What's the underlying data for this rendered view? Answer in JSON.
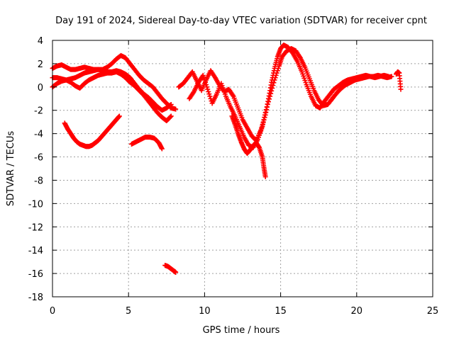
{
  "chart_data": {
    "type": "scatter",
    "title": "Day 191 of 2024, Sidereal Day-to-day VTEC variation (SDTVAR) for receiver cpnt",
    "xlabel": "GPS time / hours",
    "ylabel": "SDTVAR / TECUs",
    "xlim": [
      0,
      25
    ],
    "ylim": [
      -18,
      4
    ],
    "xticks": [
      0,
      5,
      10,
      15,
      20,
      25
    ],
    "yticks": [
      4,
      2,
      0,
      -2,
      -4,
      -6,
      -8,
      -10,
      -12,
      -14,
      -16,
      -18
    ],
    "grid": true,
    "marker": "plus",
    "color": "#ff0000",
    "series": [
      {
        "name": "arc-a",
        "x": [
          0.0,
          0.3,
          0.6,
          0.9,
          1.2,
          1.5,
          1.8,
          2.1,
          2.4,
          2.7,
          3.0,
          3.3,
          3.6,
          3.9,
          4.2,
          4.5,
          4.8,
          5.1,
          5.4,
          5.7,
          6.0,
          6.3,
          6.6,
          6.9,
          7.2,
          7.5,
          7.8
        ],
        "y": [
          1.6,
          1.8,
          1.9,
          1.7,
          1.5,
          1.5,
          1.6,
          1.7,
          1.6,
          1.5,
          1.5,
          1.4,
          1.3,
          1.3,
          1.4,
          1.3,
          1.1,
          0.8,
          0.3,
          -0.2,
          -0.6,
          -0.9,
          -1.3,
          -1.7,
          -2.0,
          -1.8,
          -1.5
        ]
      },
      {
        "name": "arc-b",
        "x": [
          0.0,
          0.3,
          0.6,
          0.9,
          1.2,
          1.5,
          1.8,
          2.1,
          2.4,
          2.7,
          3.0,
          3.3,
          3.6,
          3.9,
          4.2,
          4.5,
          4.8,
          5.1,
          5.4,
          5.7,
          6.0,
          6.3,
          6.6,
          6.9,
          7.2,
          7.5,
          7.8,
          8.1
        ],
        "y": [
          0.8,
          0.8,
          0.7,
          0.6,
          0.7,
          0.8,
          1.0,
          1.2,
          1.3,
          1.4,
          1.5,
          1.5,
          1.7,
          2.0,
          2.4,
          2.7,
          2.5,
          2.0,
          1.5,
          1.0,
          0.6,
          0.3,
          0.0,
          -0.5,
          -1.0,
          -1.4,
          -1.8,
          -1.9
        ]
      },
      {
        "name": "arc-c",
        "x": [
          0.0,
          0.3,
          0.6,
          0.9,
          1.2,
          1.5,
          1.8,
          2.1,
          2.4,
          2.7,
          3.0,
          3.3,
          3.6,
          3.9,
          4.2,
          4.5,
          4.8,
          5.1,
          5.4,
          5.7,
          6.0,
          6.3,
          6.6,
          6.9,
          7.2,
          7.5,
          7.8
        ],
        "y": [
          0.0,
          0.3,
          0.5,
          0.6,
          0.4,
          0.1,
          -0.1,
          0.3,
          0.6,
          0.8,
          1.0,
          1.1,
          1.2,
          1.2,
          1.3,
          1.1,
          0.8,
          0.4,
          0.1,
          -0.3,
          -0.7,
          -1.2,
          -1.7,
          -2.2,
          -2.6,
          -2.9,
          -2.5
        ]
      },
      {
        "name": "arc-d",
        "x": [
          0.8,
          1.0,
          1.2,
          1.4,
          1.6,
          1.8,
          2.0,
          2.2,
          2.4,
          2.6,
          2.8,
          3.0,
          3.2,
          3.4,
          3.6,
          3.8,
          4.0,
          4.2,
          4.4
        ],
        "y": [
          -3.1,
          -3.6,
          -4.0,
          -4.4,
          -4.7,
          -4.9,
          -5.0,
          -5.1,
          -5.1,
          -5.0,
          -4.8,
          -4.6,
          -4.3,
          -4.0,
          -3.7,
          -3.4,
          -3.1,
          -2.8,
          -2.5
        ]
      },
      {
        "name": "arc-e",
        "x": [
          5.2,
          5.5,
          5.8,
          6.1,
          6.4,
          6.7,
          7.0,
          7.2
        ],
        "y": [
          -4.9,
          -4.7,
          -4.5,
          -4.3,
          -4.3,
          -4.4,
          -4.8,
          -5.3
        ]
      },
      {
        "name": "arc-f",
        "x": [
          7.4,
          7.6,
          7.8,
          8.0,
          8.1
        ],
        "y": [
          -15.3,
          -15.4,
          -15.6,
          -15.8,
          -15.9
        ]
      },
      {
        "name": "arc-g",
        "x": [
          8.3,
          8.6,
          8.9,
          9.2,
          9.5,
          9.8,
          10.1,
          10.4,
          10.7,
          11.0,
          11.3,
          11.6,
          11.9,
          12.2,
          12.5,
          12.8,
          13.1,
          13.4,
          13.7,
          14.0,
          14.2,
          14.4,
          14.6,
          14.8,
          15.0,
          15.2,
          15.5,
          15.8,
          16.1,
          16.4,
          16.7,
          17.0,
          17.3,
          17.6,
          17.9,
          18.2,
          18.5,
          18.8,
          19.1,
          19.4,
          19.7,
          20.0,
          20.3,
          20.6,
          20.9,
          21.2,
          21.5,
          21.8,
          22.1
        ],
        "y": [
          0.0,
          0.3,
          0.8,
          1.3,
          0.5,
          -0.3,
          0.6,
          1.4,
          0.8,
          0.1,
          -0.4,
          -0.2,
          -0.8,
          -1.8,
          -2.8,
          -3.5,
          -4.2,
          -4.6,
          -3.7,
          -2.4,
          -1.0,
          0.4,
          1.6,
          2.6,
          3.3,
          3.6,
          3.4,
          2.9,
          2.2,
          1.3,
          0.2,
          -0.8,
          -1.6,
          -1.8,
          -1.2,
          -0.7,
          -0.2,
          0.1,
          0.4,
          0.6,
          0.7,
          0.8,
          0.9,
          1.0,
          0.9,
          0.8,
          0.9,
          1.0,
          0.9
        ]
      },
      {
        "name": "arc-h",
        "x": [
          9.0,
          9.3,
          9.6,
          9.9,
          10.2,
          10.5,
          10.8,
          11.1,
          11.4,
          11.7,
          12.0,
          12.3,
          12.6,
          12.9,
          13.2,
          13.5,
          13.8,
          14.0,
          14.3,
          14.6,
          14.9,
          15.1,
          15.4,
          15.7,
          16.0,
          16.3,
          16.6,
          16.9,
          17.2,
          17.5,
          17.8,
          18.1,
          18.4,
          18.7,
          19.0,
          19.3,
          19.6,
          19.9,
          20.2,
          20.5,
          20.8,
          21.1,
          21.4,
          21.7,
          22.0,
          22.3
        ],
        "y": [
          -1.0,
          -0.4,
          0.4,
          1.0,
          -0.2,
          -1.4,
          -0.6,
          0.3,
          -0.8,
          -1.7,
          -2.5,
          -3.4,
          -4.3,
          -5.0,
          -5.2,
          -4.5,
          -3.4,
          -2.2,
          -0.8,
          0.6,
          1.8,
          2.6,
          3.1,
          3.3,
          3.1,
          2.5,
          1.7,
          0.7,
          -0.3,
          -1.1,
          -1.6,
          -1.5,
          -1.0,
          -0.5,
          -0.1,
          0.2,
          0.4,
          0.6,
          0.7,
          0.8,
          0.9,
          0.9,
          1.0,
          0.9,
          0.8,
          0.9
        ]
      },
      {
        "name": "arc-i",
        "x": [
          11.8,
          12.0,
          12.2,
          12.4,
          12.6,
          12.8,
          13.0,
          13.2,
          13.4,
          13.6,
          13.8,
          13.9,
          14.0
        ],
        "y": [
          -2.5,
          -3.2,
          -4.0,
          -4.7,
          -5.3,
          -5.7,
          -5.4,
          -5.0,
          -4.8,
          -5.2,
          -6.0,
          -6.9,
          -7.7
        ]
      },
      {
        "name": "arc-j",
        "x": [
          22.6,
          22.7,
          22.8,
          22.9
        ],
        "y": [
          1.1,
          1.3,
          1.2,
          -0.2
        ]
      }
    ]
  }
}
